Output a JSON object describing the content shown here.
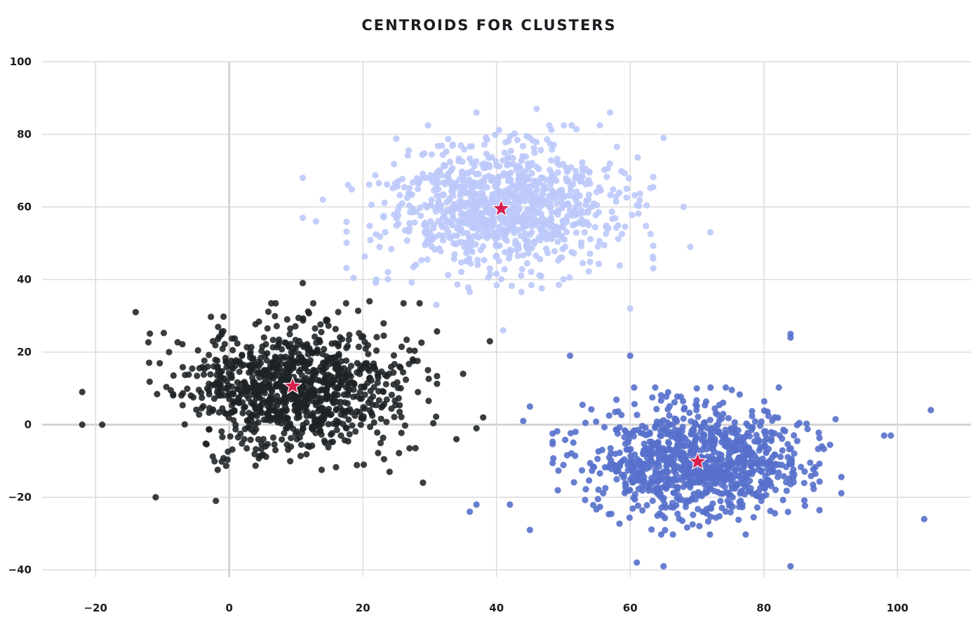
{
  "chart_data": {
    "type": "scatter",
    "title": "CENTROIDS FOR CLUSTERS",
    "xlabel": "",
    "ylabel": "",
    "xlim": [
      -28,
      111
    ],
    "ylim": [
      -42,
      100
    ],
    "x_ticks": [
      -20,
      0,
      20,
      40,
      60,
      80,
      100
    ],
    "y_ticks": [
      -40,
      -20,
      0,
      20,
      40,
      60,
      80,
      100
    ],
    "x_tick_labels": [
      "−20",
      "0",
      "20",
      "40",
      "60",
      "80",
      "100"
    ],
    "y_tick_labels": [
      "−40",
      "−20",
      "0",
      "20",
      "40",
      "60",
      "80",
      "100"
    ],
    "grid": true,
    "legend": "none",
    "colors": {
      "grid": "#dcdcdc",
      "zero_line": "#d2d2d2",
      "centroid": "#d8204e"
    },
    "clusters": [
      {
        "color": "#1e2224",
        "opacity": 0.88,
        "center": [
          9.5,
          10.5
        ],
        "spread": [
          8,
          8.5
        ],
        "count": 1000,
        "seed": 11,
        "outliers": [
          [
            -22,
            9
          ],
          [
            -22,
            0
          ],
          [
            -19,
            0
          ],
          [
            -11,
            -20
          ],
          [
            -2,
            -21
          ],
          [
            -14,
            31
          ],
          [
            29,
            -16
          ],
          [
            38,
            2
          ],
          [
            39,
            23
          ],
          [
            24,
            -13
          ],
          [
            34,
            -4
          ],
          [
            21,
            34
          ],
          [
            -9,
            20
          ],
          [
            37,
            -1
          ],
          [
            11,
            39
          ],
          [
            35,
            14
          ]
        ]
      },
      {
        "color": "#bcc9f9",
        "opacity": 0.9,
        "center": [
          40.5,
          59.5
        ],
        "spread": [
          8.5,
          8.5
        ],
        "count": 1000,
        "seed": 23,
        "outliers": [
          [
            37,
            86
          ],
          [
            46,
            87
          ],
          [
            57,
            86
          ],
          [
            65,
            79
          ],
          [
            68,
            60
          ],
          [
            72,
            53
          ],
          [
            69,
            49
          ],
          [
            11,
            57
          ],
          [
            11,
            68
          ],
          [
            13,
            56
          ],
          [
            41,
            26
          ],
          [
            22,
            40
          ],
          [
            31,
            33
          ],
          [
            14,
            62
          ],
          [
            60,
            32
          ]
        ]
      },
      {
        "color": "#5670cb",
        "opacity": 0.9,
        "center": [
          70,
          -10
        ],
        "spread": [
          8,
          7.5
        ],
        "count": 1000,
        "seed": 37,
        "outliers": [
          [
            105,
            4
          ],
          [
            104,
            -26
          ],
          [
            99,
            -3
          ],
          [
            98,
            -3
          ],
          [
            36,
            -24
          ],
          [
            37,
            -22
          ],
          [
            42,
            -22
          ],
          [
            45,
            -29
          ],
          [
            51,
            19
          ],
          [
            60,
            19
          ],
          [
            84,
            25
          ],
          [
            84,
            24
          ],
          [
            84,
            -39
          ],
          [
            65,
            -39
          ],
          [
            61,
            -38
          ],
          [
            45,
            5
          ],
          [
            44,
            1
          ]
        ]
      }
    ],
    "centroids": [
      {
        "x": 9.5,
        "y": 10.6
      },
      {
        "x": 40.7,
        "y": 59.5
      },
      {
        "x": 70.1,
        "y": -10.2
      }
    ]
  }
}
